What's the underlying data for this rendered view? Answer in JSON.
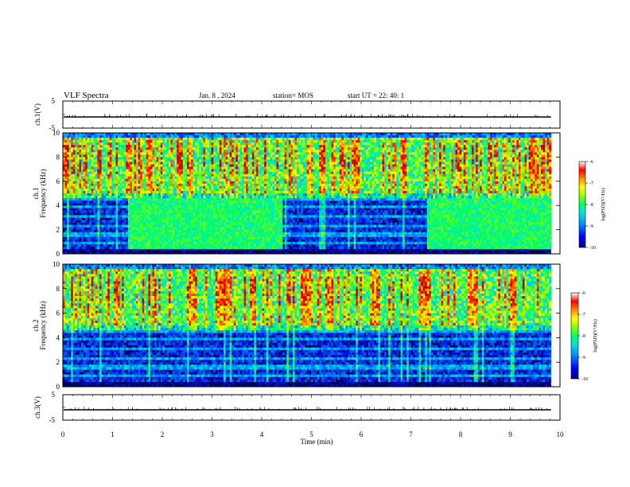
{
  "header": {
    "title": "VLF Spectra",
    "date": "Jan. 8 , 2024",
    "station": "station= MOS",
    "start": "start UT = 22: 40: 1"
  },
  "colors": {
    "scale": [
      "#000088",
      "#0000ff",
      "#0080ff",
      "#00e0e0",
      "#00ff80",
      "#80ff00",
      "#ffff00",
      "#ff8000",
      "#ff0000",
      "#c00000"
    ],
    "trace": "#000000",
    "background": "#000033"
  },
  "chart_data": [
    {
      "type": "line",
      "name": "ch1-voltage",
      "ylabel": "ch.1(V)",
      "ylim": [
        -5,
        5
      ],
      "yticks": [
        "5",
        "-5"
      ],
      "xlim": [
        0,
        10
      ],
      "level": 0,
      "note_shape": "flat trace near 0 V with small periodic spikes"
    },
    {
      "type": "heatmap",
      "name": "ch1-spectrogram",
      "ylabel": "ch.1",
      "ylabel2": "Frequency (kHz)",
      "xlim": [
        0,
        10
      ],
      "ylim": [
        0,
        10
      ],
      "yticks": [
        "0",
        "2",
        "4",
        "6",
        "8",
        "10"
      ],
      "colorbar": {
        "label": "log(PSD)(V²/Hz)",
        "ticks": [
          "-6",
          "-7",
          "-8",
          "-9",
          "-10"
        ],
        "range": [
          -10,
          -6
        ]
      },
      "data_end_min": 9.82,
      "broadband_intervals_min": [
        [
          1.3,
          4.4
        ],
        [
          7.3,
          9.82
        ]
      ],
      "broadband_top_khz": 4.5,
      "tweek_band_khz": [
        5.0,
        9.5
      ]
    },
    {
      "type": "heatmap",
      "name": "ch2-spectrogram",
      "ylabel": "ch.2",
      "ylabel2": "Frequency (kHz)",
      "xlim": [
        0,
        10
      ],
      "ylim": [
        0,
        10
      ],
      "yticks": [
        "0",
        "2",
        "4",
        "6",
        "8",
        "10"
      ],
      "colorbar": {
        "label": "log(PSD)(V²/Hz)",
        "ticks": [
          "-6",
          "-7",
          "-8",
          "-9",
          "-10"
        ],
        "range": [
          -10,
          -6
        ]
      },
      "data_end_min": 9.82,
      "broadband_intervals_min": [],
      "tweek_band_khz": [
        5.0,
        9.5
      ]
    },
    {
      "type": "line",
      "name": "ch3-voltage",
      "ylabel": "ch.3(V)",
      "ylim": [
        -5,
        5
      ],
      "yticks": [
        "5",
        "-5"
      ],
      "xlim": [
        0,
        10
      ],
      "level": 0,
      "xlabel": "Time (min)",
      "xticks": [
        "0",
        "1",
        "2",
        "3",
        "4",
        "5",
        "6",
        "7",
        "8",
        "9",
        "10"
      ]
    }
  ]
}
